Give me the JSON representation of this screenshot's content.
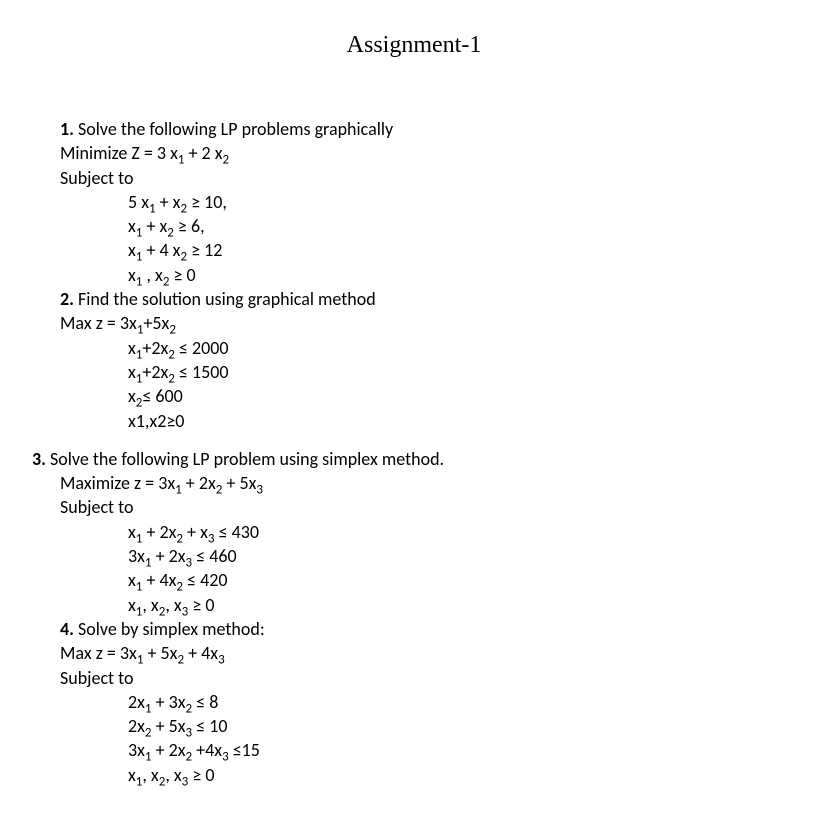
{
  "title": "Assignment-1",
  "p1": {
    "num": "1.",
    "header_rest": " Solve the following LP problems graphically",
    "obj_pre": "Minimize Z = 3 x",
    "obj_s1": "1",
    "obj_mid": "  + 2 x",
    "obj_s2": "2",
    "subject": "Subject to",
    "c1_a": "5 x",
    "c1_s1": "1",
    "c1_b": "  +   x",
    "c1_s2": "2",
    "c1_c": "  ≥  10,",
    "c2_a": "x",
    "c2_s1": "1",
    "c2_b": "  +   x",
    "c2_s2": "2",
    "c2_c": " ≥ 6,",
    "c3_a": "x",
    "c3_s1": "1",
    "c3_b": "  +  4 x",
    "c3_s2": "2",
    "c3_c": "   ≥   12",
    "c4_a": "x",
    "c4_s1": "1",
    "c4_b": " , x",
    "c4_s2": "2",
    "c4_c": " ≥ 0"
  },
  "p2": {
    "num": "2.",
    "header_rest": " Find the solution using graphical method",
    "obj_pre": "Max  z = 3x",
    "obj_s1": "1",
    "obj_mid": "+5x",
    "obj_s2": "2",
    "c1_a": "x",
    "c1_s1": "1",
    "c1_b": "+2x",
    "c1_s2": "2",
    "c1_c": "    ≤   2000",
    "c2_a": "x",
    "c2_s1": "1",
    "c2_b": "+2x",
    "c2_s2": "2",
    "c2_c": "    ≤   1500",
    "c3_a": "x",
    "c3_s1": "2",
    "c3_b": "≤ 600",
    "c4": "x1,x2≥0"
  },
  "p3": {
    "num": "3.",
    "header_rest": "  Solve the following LP problem using simplex method.",
    "obj_pre": "Maximize z = 3x",
    "obj_s1": "1",
    "obj_mid1": " + 2x",
    "obj_s2": "2",
    "obj_mid2": " + 5x",
    "obj_s3": "3",
    "subject": "Subject to",
    "c1_a": "x",
    "c1_s1": "1",
    "c1_b": " + 2x",
    "c1_s2": "2",
    "c1_c": " + x",
    "c1_s3": "3",
    "c1_d": " ≤ 430",
    "c2_a": "3x",
    "c2_s1": "1",
    "c2_b": " + 2x",
    "c2_s2": "3",
    "c2_c": " ≤ 460",
    "c3_a": "x",
    "c3_s1": "1",
    "c3_b": " + 4x",
    "c3_s2": "2",
    "c3_c": " ≤ 420",
    "c4_a": "x",
    "c4_s1": "1",
    "c4_b": ", x",
    "c4_s2": "2",
    "c4_c": ", x",
    "c4_s3": "3",
    "c4_d": " ≥ 0"
  },
  "p4": {
    "num": "4.",
    "header_rest": "   Solve by simplex method:",
    "obj_pre": "Max z = 3x",
    "obj_s1": "1",
    "obj_mid1": " + 5x",
    "obj_s2": "2",
    "obj_mid2": " + 4x",
    "obj_s3": "3",
    "subject": "Subject to",
    "c1_a": "2x",
    "c1_s1": "1",
    "c1_b": " + 3x",
    "c1_s2": "2",
    "c1_c": " ≤ 8",
    "c2_a": "2x",
    "c2_s1": "2",
    "c2_b": " + 5x",
    "c2_s2": "3",
    "c2_c": " ≤ 10",
    "c3_a": "3x",
    "c3_s1": "1",
    "c3_b": " + 2x",
    "c3_s2": "2",
    "c3_c": " +4x",
    "c3_s3": "3",
    "c3_d": " ≤15",
    "c4_a": "x",
    "c4_s1": "1",
    "c4_b": ", x",
    "c4_s2": "2",
    "c4_c": ", x",
    "c4_s3": "3",
    "c4_d": " ≥ 0"
  }
}
